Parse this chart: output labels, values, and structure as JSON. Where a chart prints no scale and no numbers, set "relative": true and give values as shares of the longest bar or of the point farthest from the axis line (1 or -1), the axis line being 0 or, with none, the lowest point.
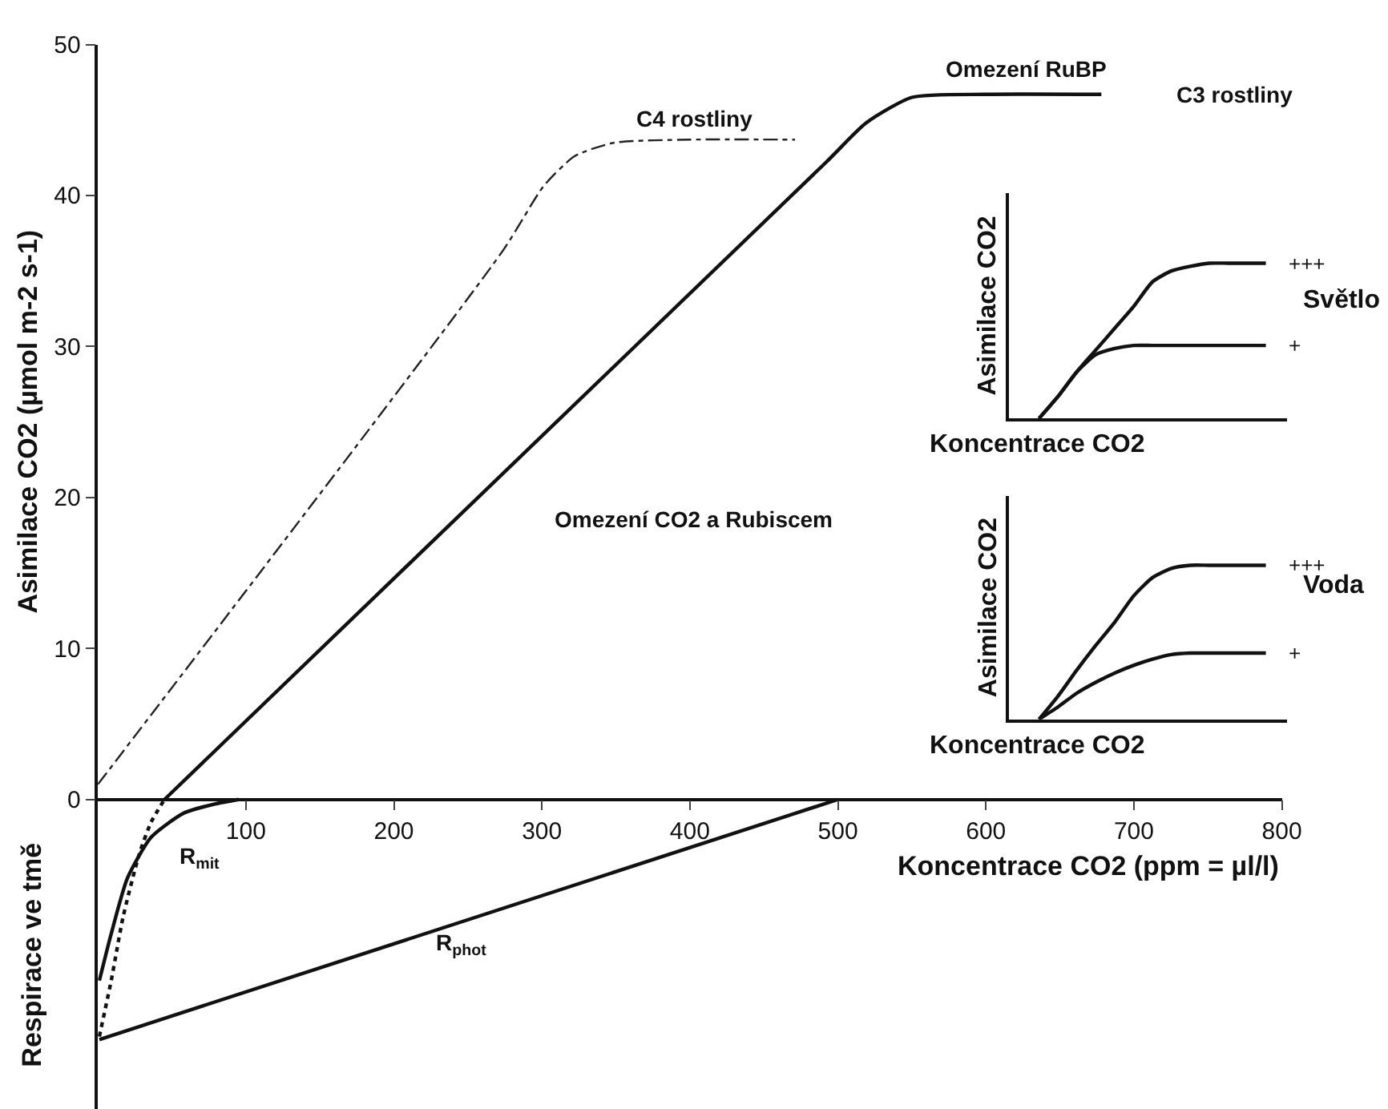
{
  "chart_data": [
    {
      "type": "line",
      "xlabel": "Koncentrace CO2 (ppm = µl/l)",
      "ylabel": "Asimilace CO2 (µmol m-2 s-1)",
      "xlim": [
        0,
        800
      ],
      "xticks": [
        100,
        200,
        300,
        400,
        500,
        600,
        700,
        800
      ],
      "ylim": [
        -20.5,
        50
      ],
      "yticks": [
        0,
        10,
        20,
        30,
        40,
        50
      ],
      "legend": false,
      "marker": "none",
      "series": [
        {
          "color": "#222222",
          "line_style": "dashed",
          "x": [
            0,
            274,
            301,
            322,
            349,
            400,
            471
          ],
          "values": [
            1,
            36.4,
            40.6,
            42.6,
            43.5,
            43.7,
            43.7
          ]
        },
        {
          "color": "#111111",
          "line_style": "solid",
          "x": [
            45,
            492,
            519,
            550,
            600,
            678
          ],
          "values": [
            0,
            42.2,
            44.8,
            46.5,
            46.7,
            46.7
          ]
        },
        {
          "color": "#111111",
          "line_style": "dotted",
          "x": [
            1,
            9,
            17,
            28,
            36,
            45
          ],
          "values": [
            -15.7,
            -12,
            -7.8,
            -3.6,
            -1.5,
            0
          ]
        },
        {
          "color": "#111111",
          "line_style": "solid",
          "x": [
            1,
            9,
            20,
            36,
            58,
            79,
            95
          ],
          "values": [
            -12,
            -8.9,
            -5.2,
            -2.5,
            -0.9,
            -0.3,
            0
          ]
        },
        {
          "color": "#111111",
          "line_style": "solid",
          "x": [
            1,
            500
          ],
          "values": [
            -15.9,
            0
          ]
        }
      ],
      "annotations": [
        "C4 rostliny",
        "Omezení RuBP",
        "C3 rostliny",
        "Omezení CO2 a Rubiscem",
        "R$_{mit}$",
        "R$_{phot}$",
        "Respirace ve tmě"
      ]
    },
    {
      "type": "line",
      "relative": true,
      "xlabel": "Koncentrace CO2",
      "ylabel": "Asimilace CO2",
      "legend": false,
      "marker": "none",
      "line_style": "solid",
      "categories": [
        null,
        null,
        null,
        null,
        null,
        null,
        null,
        null,
        null,
        null,
        null,
        null,
        null
      ],
      "series": [
        {
          "name": "+++",
          "color": "#111111",
          "values": [
            0,
            0.14,
            0.3,
            0.44,
            0.58,
            0.72,
            0.88,
            0.95,
            0.98,
            1,
            1,
            1,
            1
          ]
        },
        {
          "name": "+",
          "color": "#111111",
          "values": [
            0,
            0.14,
            0.3,
            0.41,
            0.45,
            0.47,
            0.47,
            0.47,
            0.47,
            0.47,
            0.47,
            0.47,
            0.47
          ]
        }
      ],
      "annotations": [
        "Světlo"
      ]
    },
    {
      "type": "line",
      "relative": true,
      "xlabel": "Koncentrace CO2",
      "ylabel": "Asimilace CO2",
      "legend": false,
      "marker": "none",
      "line_style": "solid",
      "categories": [
        null,
        null,
        null,
        null,
        null,
        null,
        null,
        null,
        null,
        null,
        null,
        null,
        null
      ],
      "series": [
        {
          "name": "+++",
          "color": "#111111",
          "values": [
            0,
            0.15,
            0.32,
            0.48,
            0.63,
            0.8,
            0.92,
            0.98,
            1,
            1,
            1,
            1,
            1
          ]
        },
        {
          "name": "+",
          "color": "#111111",
          "values": [
            0,
            0.08,
            0.17,
            0.24,
            0.3,
            0.35,
            0.39,
            0.42,
            0.43,
            0.43,
            0.43,
            0.43,
            0.43
          ]
        }
      ],
      "annotations": [
        "Voda"
      ]
    }
  ]
}
